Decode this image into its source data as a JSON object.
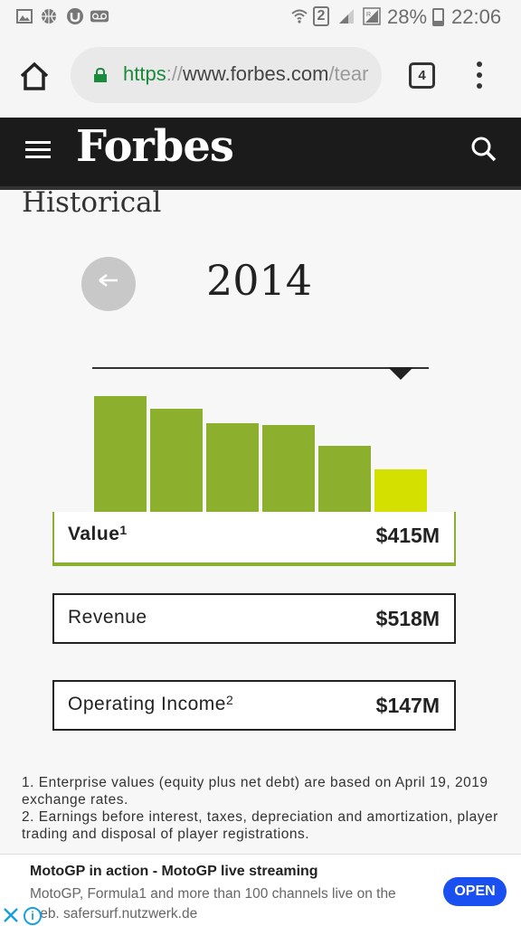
{
  "status_bar": {
    "icons": [
      "image-icon",
      "basketball-icon",
      "torrent-icon",
      "voicemail-icon",
      "wifi-icon",
      "sim-icon",
      "signal-icon",
      "signal-r-icon"
    ],
    "sim_slot": "2",
    "battery": "28%",
    "battery_level": 0.28,
    "time": "22:06"
  },
  "browser": {
    "url_scheme": "https",
    "url_sep": "://",
    "url_host": "www.forbes.com",
    "url_path": "/tear",
    "tab_count": "4"
  },
  "header": {
    "logo": "Forbes"
  },
  "section": {
    "title": "Historical"
  },
  "timeline": {
    "year": "2014",
    "back_arrow": "←"
  },
  "chart_data": {
    "type": "bar",
    "values": [
      100,
      89,
      77,
      75,
      58,
      38
    ],
    "active_index": 5,
    "colors": {
      "bar": "#8daf2e",
      "active": "#d4e000"
    }
  },
  "stats": [
    {
      "label": "Value",
      "footnote": "1",
      "value": "$415M",
      "selected": true
    },
    {
      "label": "Revenue",
      "footnote": "",
      "value": "$518M",
      "selected": false
    },
    {
      "label": "Operating Income",
      "footnote": "2",
      "value": "$147M",
      "selected": false
    }
  ],
  "footnotes": {
    "note1": "1. Enterprise values (equity plus net debt) are based on April 19, 2019 exchange rates.",
    "note2": "2. Earnings before interest, taxes, depreciation and amortization, player trading and disposal of player registrations."
  },
  "ad": {
    "title": "MotoGP in action - MotoGP live streaming",
    "description": "MotoGP, Formula1 and more than 100 channels live on the web. safersurf.nutzwerk.de",
    "open_label": "OPEN",
    "info_label": "i",
    "accent": "#1a4ff0"
  }
}
